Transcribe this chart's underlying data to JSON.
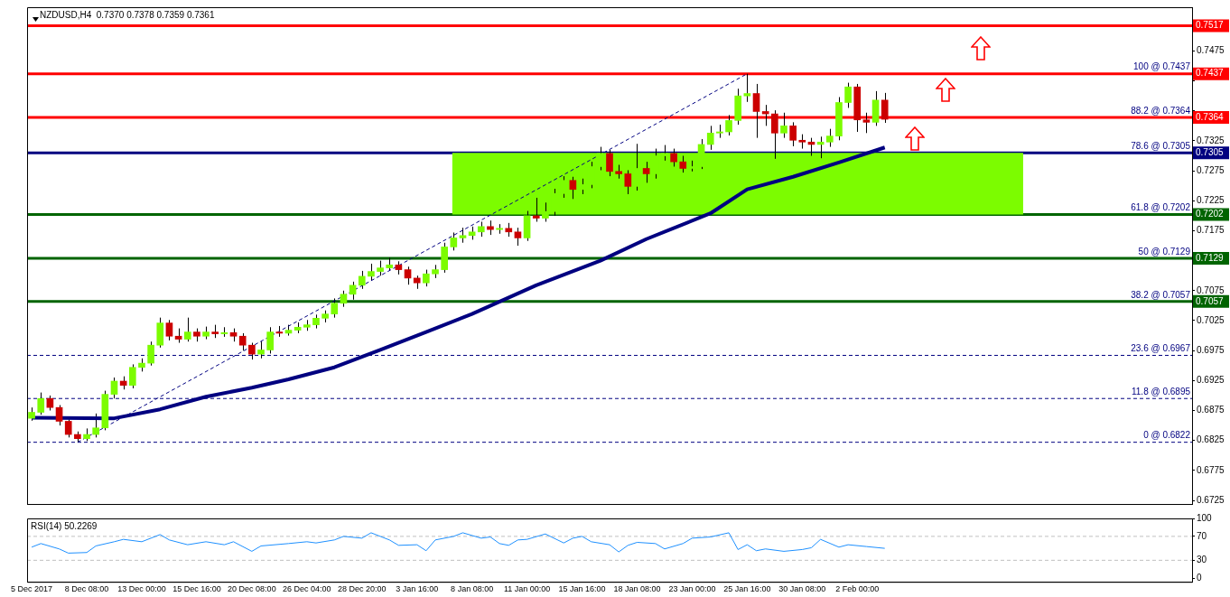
{
  "chart_data": [
    {
      "type": "candlestick",
      "title": "NZDUSD,H4  0.7370 0.7378 0.7359 0.7361",
      "categories": [
        null,
        null,
        null,
        null,
        null,
        null,
        null,
        null,
        null,
        null,
        null,
        null,
        null,
        null,
        null,
        null,
        null,
        null,
        null,
        null,
        null,
        null,
        null,
        null,
        null,
        null,
        null,
        null,
        null,
        null,
        null,
        null,
        null,
        null,
        null,
        null,
        null,
        null,
        null,
        null,
        null,
        null,
        null,
        null,
        null,
        null,
        null,
        null,
        null,
        null,
        null,
        null,
        null,
        null,
        null,
        null,
        null,
        null,
        null,
        null,
        null,
        null,
        null,
        null,
        null,
        null,
        null,
        null,
        null,
        null,
        null,
        null,
        null,
        null,
        null,
        null,
        null,
        null,
        null,
        null,
        null,
        null,
        null,
        null,
        null,
        null,
        null,
        null,
        null,
        null,
        null,
        null,
        null,
        null,
        null,
        null,
        null,
        null,
        null,
        null,
        null,
        null,
        null,
        null,
        null,
        null,
        null,
        null,
        null,
        null,
        null,
        null,
        null,
        null,
        null,
        null,
        null,
        null,
        null,
        null,
        null,
        null,
        null,
        null,
        null,
        null,
        null
      ],
      "ohlc": [
        [
          0.6862,
          0.688,
          0.6858,
          0.6872
        ],
        [
          0.6872,
          0.6905,
          0.6868,
          0.6895
        ],
        [
          0.6895,
          0.69,
          0.6875,
          0.688
        ],
        [
          0.688,
          0.6884,
          0.685,
          0.6857
        ],
        [
          0.6857,
          0.686,
          0.683,
          0.6835
        ],
        [
          0.6835,
          0.684,
          0.6822,
          0.6828
        ],
        [
          0.6828,
          0.6845,
          0.6824,
          0.6835
        ],
        [
          0.6835,
          0.687,
          0.683,
          0.6846
        ],
        [
          0.6846,
          0.6908,
          0.6842,
          0.6902
        ],
        [
          0.6902,
          0.693,
          0.6895,
          0.6924
        ],
        [
          0.6924,
          0.6932,
          0.691,
          0.6917
        ],
        [
          0.6917,
          0.6952,
          0.6912,
          0.6947
        ],
        [
          0.6947,
          0.6962,
          0.694,
          0.6954
        ],
        [
          0.6954,
          0.699,
          0.695,
          0.6984
        ],
        [
          0.6984,
          0.703,
          0.698,
          0.7021
        ],
        [
          0.7021,
          0.7026,
          0.6992,
          0.6999
        ],
        [
          0.6999,
          0.7012,
          0.6988,
          0.6994
        ],
        [
          0.6994,
          0.703,
          0.699,
          0.7006
        ],
        [
          0.7006,
          0.7012,
          0.699,
          0.6999
        ],
        [
          0.6999,
          0.7015,
          0.6994,
          0.7006
        ],
        [
          0.7006,
          0.7018,
          0.6996,
          0.7003
        ],
        [
          0.7003,
          0.7014,
          0.6998,
          0.7005
        ],
        [
          0.7005,
          0.7012,
          0.699,
          0.6999
        ],
        [
          0.6999,
          0.7004,
          0.6975,
          0.6984
        ],
        [
          0.6984,
          0.6988,
          0.696,
          0.6969
        ],
        [
          0.6969,
          0.699,
          0.6962,
          0.6976
        ],
        [
          0.6976,
          0.7014,
          0.697,
          0.7006
        ],
        [
          0.7006,
          0.7016,
          0.6998,
          0.7004
        ],
        [
          0.7004,
          0.7018,
          0.7,
          0.7009
        ],
        [
          0.7009,
          0.7022,
          0.7004,
          0.7014
        ],
        [
          0.7014,
          0.7026,
          0.7008,
          0.7018
        ],
        [
          0.7018,
          0.7035,
          0.7012,
          0.7029
        ],
        [
          0.7029,
          0.7042,
          0.7022,
          0.7036
        ],
        [
          0.7036,
          0.7062,
          0.703,
          0.7054
        ],
        [
          0.7054,
          0.7075,
          0.7048,
          0.7069
        ],
        [
          0.7069,
          0.709,
          0.706,
          0.7084
        ],
        [
          0.7084,
          0.7108,
          0.7078,
          0.7099
        ],
        [
          0.7099,
          0.712,
          0.7092,
          0.7107
        ],
        [
          0.7107,
          0.7125,
          0.71,
          0.7113
        ],
        [
          0.7113,
          0.713,
          0.7108,
          0.7118
        ],
        [
          0.7118,
          0.7124,
          0.7102,
          0.711
        ],
        [
          0.711,
          0.7115,
          0.7085,
          0.7096
        ],
        [
          0.7096,
          0.71,
          0.7078,
          0.7088
        ],
        [
          0.7088,
          0.711,
          0.7082,
          0.7103
        ],
        [
          0.7103,
          0.7118,
          0.7096,
          0.711
        ],
        [
          0.711,
          0.7155,
          0.7105,
          0.7148
        ],
        [
          0.7148,
          0.7172,
          0.7142,
          0.7163
        ],
        [
          0.7163,
          0.718,
          0.7155,
          0.7167
        ],
        [
          0.7167,
          0.7182,
          0.716,
          0.7173
        ],
        [
          0.7173,
          0.719,
          0.7165,
          0.7182
        ],
        [
          0.7182,
          0.7192,
          0.7168,
          0.7177
        ],
        [
          0.7177,
          0.7186,
          0.717,
          0.7179
        ],
        [
          0.7179,
          0.7188,
          0.7165,
          0.7173
        ],
        [
          0.7173,
          0.718,
          0.715,
          0.7163
        ],
        [
          0.7163,
          0.7208,
          0.7158,
          0.72
        ],
        [
          0.72,
          0.723,
          0.719,
          0.7196
        ],
        [
          0.7196,
          0.7222,
          0.719,
          0.7207
        ],
        [
          0.7207,
          0.7245,
          0.72,
          0.7237
        ],
        [
          0.7237,
          0.7266,
          0.723,
          0.7259
        ],
        [
          0.7259,
          0.7265,
          0.7228,
          0.7244
        ],
        [
          0.7244,
          0.7262,
          0.7236,
          0.7252
        ],
        [
          0.7252,
          0.729,
          0.7246,
          0.7282
        ],
        [
          0.7282,
          0.7315,
          0.7276,
          0.7304
        ],
        [
          0.7304,
          0.731,
          0.7266,
          0.7274
        ],
        [
          0.7274,
          0.7285,
          0.7262,
          0.727
        ],
        [
          0.727,
          0.7276,
          0.7236,
          0.7249
        ],
        [
          0.7249,
          0.732,
          0.7242,
          0.7279
        ],
        [
          0.7279,
          0.729,
          0.7255,
          0.727
        ],
        [
          0.727,
          0.7312,
          0.7262,
          0.73
        ],
        [
          0.73,
          0.7318,
          0.7292,
          0.7304
        ],
        [
          0.7304,
          0.7312,
          0.7282,
          0.729
        ],
        [
          0.729,
          0.73,
          0.7272,
          0.7279
        ],
        [
          0.7279,
          0.7292,
          0.7274,
          0.7282
        ],
        [
          0.7282,
          0.7328,
          0.7278,
          0.7319
        ],
        [
          0.7319,
          0.735,
          0.731,
          0.7338
        ],
        [
          0.7338,
          0.7352,
          0.733,
          0.734
        ],
        [
          0.734,
          0.7368,
          0.7334,
          0.7359
        ],
        [
          0.7359,
          0.7412,
          0.7352,
          0.74
        ],
        [
          0.74,
          0.7437,
          0.739,
          0.7404
        ],
        [
          0.7404,
          0.742,
          0.733,
          0.7374
        ],
        [
          0.7374,
          0.7385,
          0.735,
          0.737
        ],
        [
          0.737,
          0.7376,
          0.7295,
          0.7338
        ],
        [
          0.7338,
          0.7372,
          0.733,
          0.735
        ],
        [
          0.735,
          0.7356,
          0.7316,
          0.7326
        ],
        [
          0.7326,
          0.7336,
          0.7312,
          0.7323
        ],
        [
          0.7323,
          0.733,
          0.73,
          0.7319
        ],
        [
          0.7319,
          0.7332,
          0.7296,
          0.7323
        ],
        [
          0.7323,
          0.7345,
          0.7315,
          0.7333
        ],
        [
          0.7333,
          0.7398,
          0.7326,
          0.7389
        ],
        [
          0.7389,
          0.7422,
          0.738,
          0.7415
        ],
        [
          0.7415,
          0.742,
          0.734,
          0.736
        ],
        [
          0.736,
          0.7372,
          0.7338,
          0.7356
        ],
        [
          0.7356,
          0.7408,
          0.735,
          0.7393
        ],
        [
          0.7393,
          0.7405,
          0.7355,
          0.7361
        ],
        null,
        null,
        null,
        null,
        null,
        null,
        null,
        null,
        null,
        null,
        null,
        null,
        null,
        null,
        null,
        null,
        null,
        null,
        null,
        null,
        null,
        null,
        null,
        null,
        null,
        null,
        null,
        null,
        null,
        null,
        null,
        null,
        null
      ],
      "colors": [
        "#7cfc00",
        "#7cfc00",
        "#cc0000",
        "#cc0000",
        "#cc0000",
        "#cc0000",
        "#7cfc00",
        "#7cfc00",
        "#7cfc00",
        "#7cfc00",
        "#cc0000",
        "#7cfc00",
        "#7cfc00",
        "#7cfc00",
        "#7cfc00",
        "#cc0000",
        "#cc0000",
        "#7cfc00",
        "#cc0000",
        "#7cfc00",
        "#cc0000",
        "#7cfc00",
        "#cc0000",
        "#cc0000",
        "#cc0000",
        "#7cfc00",
        "#7cfc00",
        "#cc0000",
        "#7cfc00",
        "#7cfc00",
        "#7cfc00",
        "#7cfc00",
        "#7cfc00",
        "#7cfc00",
        "#7cfc00",
        "#7cfc00",
        "#7cfc00",
        "#7cfc00",
        "#7cfc00",
        "#7cfc00",
        "#cc0000",
        "#cc0000",
        "#cc0000",
        "#7cfc00",
        "#7cfc00",
        "#7cfc00",
        "#7cfc00",
        "#7cfc00",
        "#7cfc00",
        "#7cfc00",
        "#cc0000",
        "#7cfc00",
        "#cc0000",
        "#cc0000",
        "#7cfc00",
        "#cc0000",
        "#7cfc00",
        "#7cfc00",
        "#7cfc00",
        "#cc0000",
        "#7cfc00",
        "#7cfc00",
        "#7cfc00",
        "#cc0000",
        "#cc0000",
        "#cc0000",
        "#7cfc00",
        "#cc0000",
        "#7cfc00",
        "#7cfc00",
        "#cc0000",
        "#cc0000",
        "#7cfc00",
        "#7cfc00",
        "#7cfc00",
        "#7cfc00",
        "#7cfc00",
        "#7cfc00",
        "#7cfc00",
        "#cc0000",
        "#cc0000",
        "#cc0000",
        "#7cfc00",
        "#cc0000",
        "#cc0000",
        "#cc0000",
        "#7cfc00",
        "#7cfc00",
        "#7cfc00",
        "#7cfc00",
        "#cc0000",
        "#cc0000",
        "#7cfc00",
        "#cc0000",
        null,
        null,
        null,
        null,
        null,
        null,
        null,
        null,
        null,
        null,
        null,
        null,
        null,
        null,
        null,
        null,
        null,
        null,
        null,
        null,
        null,
        null,
        null,
        null,
        null,
        null,
        null,
        null,
        null,
        null,
        null,
        null,
        null
      ],
      "series": [
        {
          "type": "line",
          "color": "#000080",
          "line_style": "solid",
          "values": [
            0.6863,
            null,
            null,
            null,
            null,
            null,
            null,
            null,
            null,
            0.6862,
            null,
            null,
            null,
            null,
            0.6877,
            null,
            null,
            null,
            null,
            0.6898,
            null,
            null,
            null,
            null,
            0.6913,
            null,
            null,
            null,
            0.6927,
            null,
            null,
            null,
            null,
            0.6947,
            null,
            null,
            null,
            null,
            0.6976,
            null,
            null,
            null,
            null,
            0.7006,
            null,
            null,
            null,
            null,
            0.7036,
            null,
            null,
            null,
            null,
            null,
            null,
            0.7084,
            null,
            null,
            null,
            null,
            null,
            null,
            0.7125,
            null,
            null,
            null,
            null,
            0.7161,
            null,
            null,
            null,
            null,
            null,
            null,
            0.7204,
            null,
            null,
            null,
            0.7244,
            null,
            null,
            null,
            null,
            0.7265,
            null,
            null,
            null,
            null,
            0.7289,
            null,
            null,
            null,
            null,
            0.7314,
            null,
            null,
            null,
            null,
            null,
            null,
            null,
            null,
            null,
            null,
            null,
            null,
            null,
            null,
            null,
            null,
            null,
            null,
            null,
            null,
            null,
            null,
            null,
            null,
            null,
            null,
            null,
            null,
            null,
            null,
            null,
            null,
            null
          ]
        },
        {
          "type": "line",
          "color": "#000080",
          "line_style": "dashed",
          "values": [
            null,
            null,
            null,
            null,
            null,
            0.6822,
            null,
            null,
            null,
            null,
            null,
            null,
            null,
            null,
            null,
            null,
            null,
            null,
            null,
            null,
            null,
            null,
            null,
            null,
            null,
            null,
            null,
            null,
            null,
            null,
            null,
            null,
            null,
            null,
            null,
            null,
            null,
            null,
            null,
            null,
            null,
            null,
            null,
            null,
            null,
            null,
            null,
            null,
            null,
            null,
            null,
            null,
            null,
            null,
            null,
            null,
            null,
            null,
            null,
            null,
            null,
            null,
            null,
            null,
            null,
            null,
            null,
            null,
            null,
            null,
            null,
            null,
            null,
            null,
            null,
            null,
            null,
            null,
            0.7437,
            null,
            null,
            null,
            null,
            null,
            null,
            null,
            null,
            null,
            null,
            null,
            null,
            null,
            null,
            null,
            null,
            null,
            null,
            null,
            null,
            null,
            null,
            null,
            null,
            null,
            null,
            null,
            null,
            null,
            null,
            null,
            null,
            null,
            null,
            null,
            null,
            null,
            null,
            null,
            null,
            null,
            null,
            null,
            null,
            null,
            null,
            null,
            null
          ]
        }
      ],
      "ylim": [
        0.6719,
        0.7548
      ],
      "yticks": [
        0.6725,
        0.6775,
        0.6825,
        0.6875,
        0.6925,
        0.6975,
        0.7025,
        0.7075,
        {
          "value": 0.7125,
          "label": null
        },
        0.7175,
        0.7225,
        0.7275,
        0.7325,
        {
          "value": 0.7375,
          "label": null
        },
        {
          "value": 0.7425,
          "label": null
        },
        0.7475,
        {
          "value": 0.7525,
          "label": null
        }
      ],
      "annotations": [
        {
          "text": "0.7517",
          "y": 0.7517
        },
        {
          "text": "0.7437",
          "y": 0.7437
        },
        {
          "text": "0.7364",
          "y": 0.7364
        },
        {
          "text": "0.7305",
          "y": 0.7305
        },
        {
          "text": "0.7202",
          "y": 0.7202
        },
        {
          "text": "0.7129",
          "y": 0.7129
        },
        {
          "text": "0.7057",
          "y": 0.7057
        }
      ],
      "ref_lines": [
        {
          "axis": "y",
          "value": 0.7517,
          "color": "#ff0000",
          "line_style": "solid"
        },
        {
          "axis": "y",
          "value": 0.7437,
          "label": "100 @ 0.7437",
          "color": "#ff0000",
          "line_style": "solid"
        },
        {
          "axis": "y",
          "value": 0.7364,
          "label": "88.2 @ 0.7364",
          "color": "#ff0000",
          "line_style": "solid"
        },
        {
          "axis": "y",
          "value": 0.7305,
          "label": "78.6 @ 0.7305",
          "color": "#000080",
          "line_style": "solid"
        },
        {
          "axis": "y",
          "value": 0.7202,
          "label": "61.8 @ 0.7202",
          "color": "#006400",
          "line_style": "solid"
        },
        {
          "axis": "y",
          "value": 0.7129,
          "label": "50 @ 0.7129",
          "color": "#006400",
          "line_style": "solid"
        },
        {
          "axis": "y",
          "value": 0.7057,
          "label": "38.2 @ 0.7057",
          "color": "#006400",
          "line_style": "solid"
        },
        {
          "axis": "y",
          "value": 0.6967,
          "label": "23.6 @ 0.6967",
          "color": "#000080",
          "line_style": "dashed"
        },
        {
          "axis": "y",
          "value": 0.6895,
          "label": "11.8 @ 0.6895",
          "color": "#000080",
          "line_style": "dashed"
        },
        {
          "axis": "y",
          "value": 0.6822,
          "label": "0 @ 0.6822",
          "color": "#000080",
          "line_style": "dashed"
        }
      ],
      "bands": [
        {
          "axis": "y",
          "from": 0.7202,
          "to": 0.7305,
          "color": "#7cfc00"
        }
      ],
      "tick_labels": "y",
      "grid": false,
      "legend": false,
      "marker": "none"
    },
    {
      "type": "line",
      "title": "RSI(14) 50.2269",
      "categories": [
        "5 Dec 2017",
        null,
        null,
        null,
        null,
        null,
        "8 Dec 08:00",
        null,
        null,
        null,
        null,
        null,
        "13 Dec 00:00",
        null,
        null,
        null,
        null,
        null,
        "15 Dec 16:00",
        null,
        null,
        null,
        null,
        null,
        "20 Dec 08:00",
        null,
        null,
        null,
        null,
        null,
        "26 Dec 04:00",
        null,
        null,
        null,
        null,
        null,
        "28 Dec 20:00",
        null,
        null,
        null,
        null,
        null,
        "3 Jan 16:00",
        null,
        null,
        null,
        null,
        null,
        "8 Jan 08:00",
        null,
        null,
        null,
        null,
        null,
        "11 Jan 00:00",
        null,
        null,
        null,
        null,
        null,
        "15 Jan 16:00",
        null,
        null,
        null,
        null,
        null,
        "18 Jan 08:00",
        null,
        null,
        null,
        null,
        null,
        "23 Jan 00:00",
        null,
        null,
        null,
        null,
        null,
        "25 Jan 16:00",
        null,
        null,
        null,
        null,
        null,
        "30 Jan 08:00",
        null,
        null,
        null,
        null,
        null,
        "2 Feb 00:00",
        null,
        null,
        null,
        null,
        null,
        null,
        null,
        null,
        null,
        null,
        null,
        null,
        null,
        null,
        null,
        null,
        null,
        null,
        null,
        null,
        null,
        null,
        null,
        null,
        null,
        null,
        null,
        null,
        null,
        null,
        null,
        null,
        null,
        null,
        null,
        null
      ],
      "series": [
        {
          "color": "#1e90ff",
          "values": [
            52,
            58,
            null,
            49,
            42,
            null,
            43,
            54,
            null,
            61,
            65,
            null,
            61,
            null,
            73,
            64,
            null,
            56,
            null,
            61,
            null,
            56,
            61,
            null,
            45,
            54,
            null,
            null,
            58,
            null,
            61,
            59,
            null,
            64,
            70,
            null,
            67,
            76,
            null,
            64,
            55,
            null,
            56,
            46,
            64,
            null,
            70,
            76,
            null,
            67,
            69,
            58,
            55,
            64,
            65,
            null,
            74,
            null,
            59,
            67,
            70,
            61,
            null,
            56,
            44,
            55,
            60,
            null,
            58,
            49,
            null,
            58,
            67,
            null,
            69,
            null,
            76,
            48,
            56,
            46,
            49,
            null,
            45,
            null,
            48,
            51,
            65,
            null,
            52,
            56,
            null,
            53,
            null,
            50,
            null,
            null,
            null,
            null,
            null,
            null,
            null,
            null,
            null,
            null,
            null,
            null,
            null,
            null,
            null,
            null,
            null,
            null,
            null,
            null,
            null,
            null,
            null,
            null,
            null,
            null,
            null,
            null,
            null,
            null,
            null,
            null,
            null
          ]
        }
      ],
      "ylim": [
        -6,
        100
      ],
      "yticks": [
        0,
        30,
        70,
        100
      ],
      "ref_lines": [
        {
          "axis": "y",
          "value": 70,
          "color": "#c0c0c0",
          "line_style": "dashed"
        },
        {
          "axis": "y",
          "value": 30,
          "color": "#c0c0c0",
          "line_style": "dashed"
        }
      ],
      "grid": false,
      "legend": false,
      "marker": "none"
    }
  ]
}
